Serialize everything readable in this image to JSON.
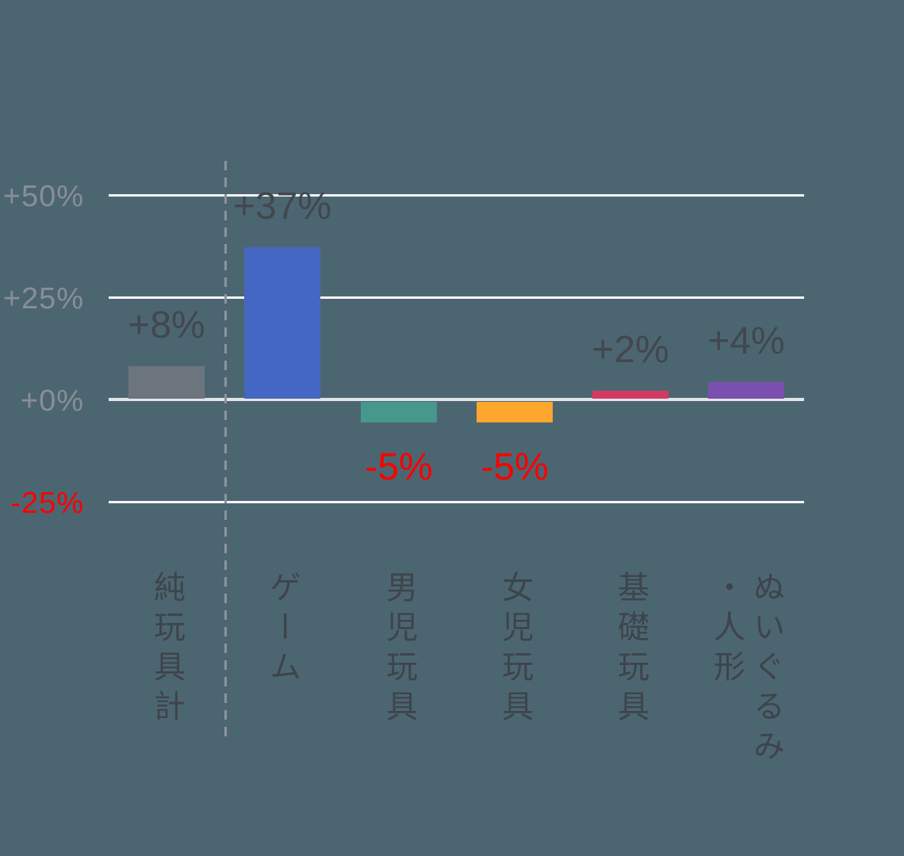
{
  "chart_data": {
    "type": "bar",
    "title": "",
    "xlabel": "",
    "ylabel": "",
    "categories": [
      "純玩具計",
      "ゲーム",
      "男児玩具",
      "女児玩具",
      "基礎玩具",
      "ぬいぐるみ・人形"
    ],
    "category_lines": [
      [
        "純玩具計"
      ],
      [
        "ゲーム"
      ],
      [
        "男児玩具"
      ],
      [
        "女児玩具"
      ],
      [
        "基礎玩具"
      ],
      [
        "ぬいぐるみ",
        "・人形"
      ]
    ],
    "values": [
      8,
      37,
      -5,
      -5,
      2,
      4
    ],
    "value_labels": [
      "+8%",
      "+37%",
      "-5%",
      "-5%",
      "+2%",
      "+4%"
    ],
    "bar_colors": [
      "#6c757d",
      "#4367c2",
      "#47988c",
      "#ffa62e",
      "#d23a64",
      "#7a4fb0"
    ],
    "y_ticks": [
      {
        "label": "+50%",
        "value": 50
      },
      {
        "label": "+25%",
        "value": 25
      },
      {
        "label": "+0%",
        "value": 0
      },
      {
        "label": "-25%",
        "value": -25
      }
    ],
    "ylim": [
      -25,
      58
    ],
    "grid": true,
    "legend": false,
    "separator_after_category_index": 0
  },
  "colors": {
    "background": "#4c6671",
    "gridline": "#f4f5f7",
    "zero_line": "#e2e4e9",
    "dashed_separator": "#8d939a",
    "tick_label_gray": "#898e96",
    "negative_red": "#fb0000",
    "value_label_dark": "#42474e",
    "category_label": "#3e444b"
  }
}
